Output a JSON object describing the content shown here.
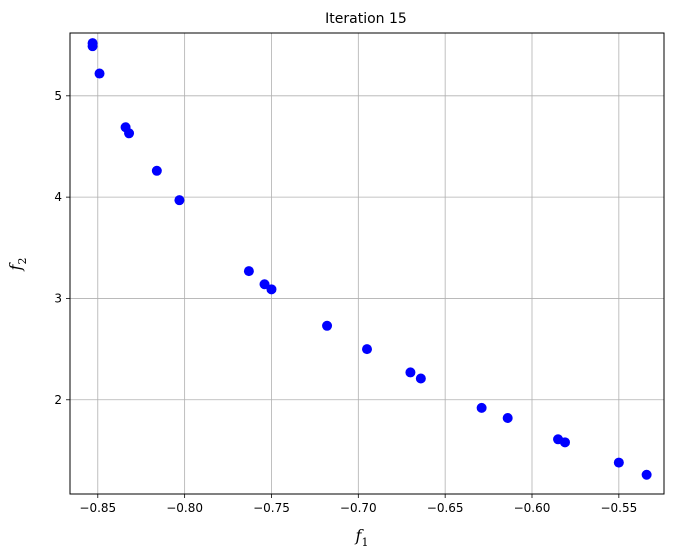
{
  "chart_data": {
    "type": "scatter",
    "title": "Iteration 15",
    "xlabel": "f",
    "xlabel_sub": "1",
    "ylabel": "f",
    "ylabel_sub": "2",
    "xlim": [
      -0.866,
      -0.524
    ],
    "ylim": [
      1.07,
      5.62
    ],
    "xticks": [
      -0.85,
      -0.8,
      -0.75,
      -0.7,
      -0.65,
      -0.6,
      -0.55
    ],
    "xtick_labels": [
      "−0.85",
      "−0.80",
      "−0.75",
      "−0.70",
      "−0.65",
      "−0.60",
      "−0.55"
    ],
    "yticks": [
      2,
      3,
      4,
      5
    ],
    "ytick_labels": [
      "2",
      "3",
      "4",
      "5"
    ],
    "grid": true,
    "marker_color": "#0000ff",
    "points": [
      {
        "x": -0.853,
        "y": 5.52
      },
      {
        "x": -0.853,
        "y": 5.49
      },
      {
        "x": -0.849,
        "y": 5.22
      },
      {
        "x": -0.834,
        "y": 4.69
      },
      {
        "x": -0.832,
        "y": 4.63
      },
      {
        "x": -0.816,
        "y": 4.26
      },
      {
        "x": -0.803,
        "y": 3.97
      },
      {
        "x": -0.763,
        "y": 3.27
      },
      {
        "x": -0.754,
        "y": 3.14
      },
      {
        "x": -0.75,
        "y": 3.09
      },
      {
        "x": -0.718,
        "y": 2.73
      },
      {
        "x": -0.695,
        "y": 2.5
      },
      {
        "x": -0.67,
        "y": 2.27
      },
      {
        "x": -0.664,
        "y": 2.21
      },
      {
        "x": -0.629,
        "y": 1.92
      },
      {
        "x": -0.614,
        "y": 1.82
      },
      {
        "x": -0.585,
        "y": 1.61
      },
      {
        "x": -0.581,
        "y": 1.58
      },
      {
        "x": -0.55,
        "y": 1.38
      },
      {
        "x": -0.534,
        "y": 1.26
      }
    ]
  }
}
